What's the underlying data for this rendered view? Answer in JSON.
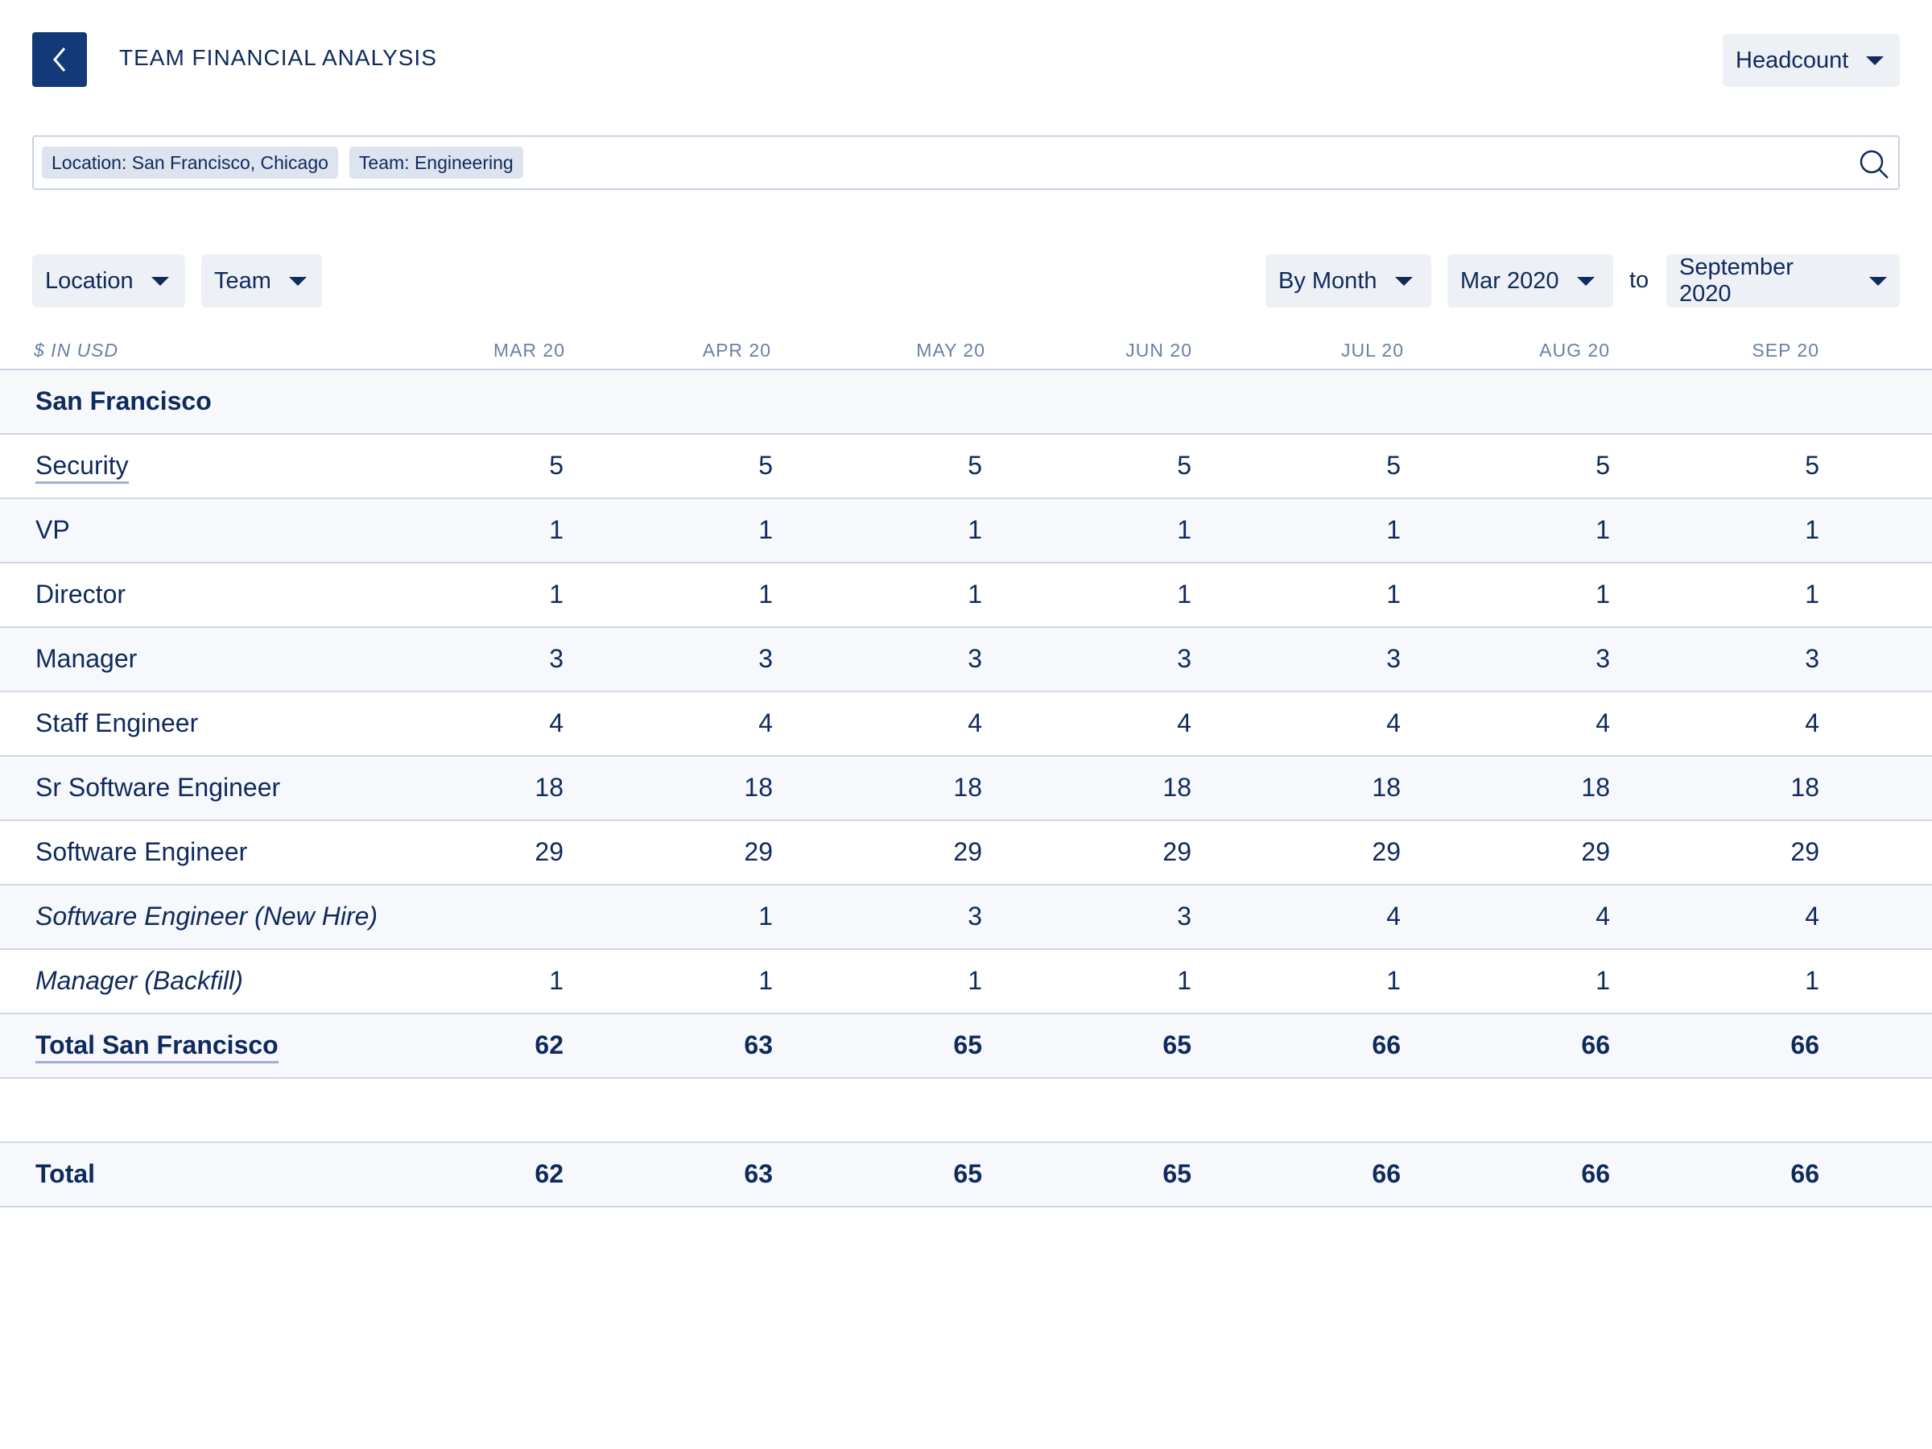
{
  "header": {
    "title": "TEAM FINANCIAL ANALYSIS",
    "back_icon": "chevron-left-icon",
    "metric_dropdown": "Headcount"
  },
  "filters": {
    "chips": [
      "Location: San Francisco, Chicago",
      "Team: Engineering"
    ],
    "search_icon": "search-icon"
  },
  "controls": {
    "location": "Location",
    "team": "Team",
    "granularity": "By Month",
    "range_start": "Mar 2020",
    "range_separator": "to",
    "range_end": "September 2020"
  },
  "table": {
    "unit_label": "$ IN USD",
    "columns": [
      "MAR 20",
      "APR 20",
      "MAY 20",
      "JUN 20",
      "JUL 20",
      "AUG 20",
      "SEP 20"
    ],
    "section": "San Francisco",
    "rows": [
      {
        "name": "Security",
        "values": [
          "5",
          "5",
          "5",
          "5",
          "5",
          "5",
          "5"
        ]
      },
      {
        "name": "VP",
        "values": [
          "1",
          "1",
          "1",
          "1",
          "1",
          "1",
          "1"
        ]
      },
      {
        "name": "Director",
        "values": [
          "1",
          "1",
          "1",
          "1",
          "1",
          "1",
          "1"
        ]
      },
      {
        "name": "Manager",
        "values": [
          "3",
          "3",
          "3",
          "3",
          "3",
          "3",
          "3"
        ]
      },
      {
        "name": "Staff Engineer",
        "values": [
          "4",
          "4",
          "4",
          "4",
          "4",
          "4",
          "4"
        ]
      },
      {
        "name": "Sr Software Engineer",
        "values": [
          "18",
          "18",
          "18",
          "18",
          "18",
          "18",
          "18"
        ]
      },
      {
        "name": "Software Engineer",
        "values": [
          "29",
          "29",
          "29",
          "29",
          "29",
          "29",
          "29"
        ]
      },
      {
        "name": "Software Engineer (New Hire)",
        "values": [
          "",
          "1",
          "3",
          "3",
          "4",
          "4",
          "4"
        ]
      },
      {
        "name": "Manager (Backfill)",
        "values": [
          "1",
          "1",
          "1",
          "1",
          "1",
          "1",
          "1"
        ]
      }
    ],
    "section_total": {
      "name": "Total San Francisco",
      "values": [
        "62",
        "63",
        "65",
        "65",
        "66",
        "66",
        "66"
      ]
    },
    "grand_total": {
      "name": "Total",
      "values": [
        "62",
        "63",
        "65",
        "65",
        "66",
        "66",
        "66"
      ]
    }
  },
  "colors": {
    "accent": "#123a78",
    "text": "#0f2a5c",
    "muted": "#6a7fa6",
    "control_bg": "#edf0f4",
    "chip_bg": "#dde3ef",
    "row_alt": "#f6f8fc"
  }
}
